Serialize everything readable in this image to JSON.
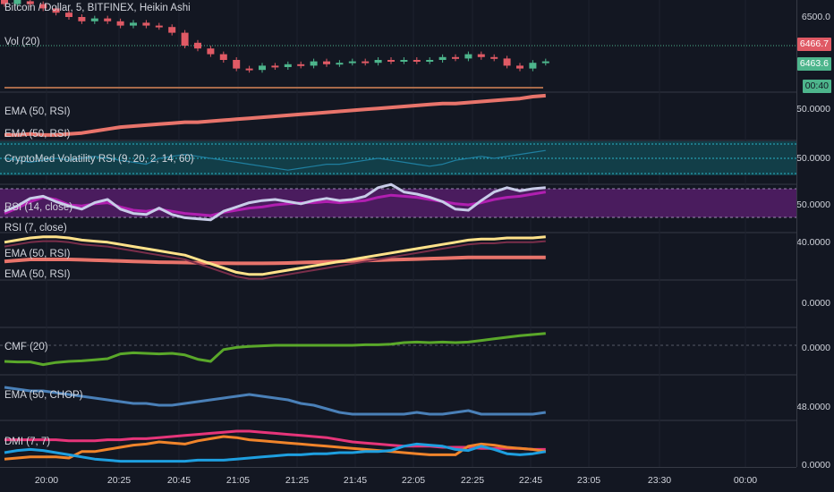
{
  "symbol": {
    "title": "Bitcoin / Dollar, 5, BITFINEX, Heikin Ashi",
    "last_price": "6466.7",
    "secondary_price": "6463.6",
    "countdown": "00:40",
    "price_axis_label": "6500.0"
  },
  "colors": {
    "background": "#131722",
    "up": "#4db58c",
    "down": "#e05a65",
    "grid": "#363a45",
    "ema_salmon": "#e8746b",
    "rsi_line": "#c8cce8",
    "rsi_band": "#4a1c5e",
    "volatility_band": "#123e48",
    "cmf": "#5aa82a",
    "chop": "#4a80b8",
    "dmi_pink": "#e6357a",
    "dmi_orange": "#f0842b",
    "dmi_blue": "#1e9fe0",
    "ema_yellow": "#ffe28a"
  },
  "panes": [
    {
      "id": "price",
      "labels": [
        "Bitcoin / Dollar, 5, BITFINEX, Heikin Ashi",
        "Vol (20)"
      ],
      "axis": "6500.0"
    },
    {
      "id": "ema-rsi",
      "labels": [
        "EMA (50, RSI)",
        "EMA (50, RSI)"
      ],
      "axis": "50.0000"
    },
    {
      "id": "cryptomed",
      "labels": [
        "CryptoMed Volatility RSI (9, 20, 2, 14, 60)"
      ],
      "axis": "50.0000"
    },
    {
      "id": "rsi",
      "labels": [
        "RSI (14, close)",
        "RSI (7, close)"
      ],
      "axis": "50.0000"
    },
    {
      "id": "ema-rsi-2",
      "labels": [
        "EMA (50, RSI)",
        "EMA (50, RSI)"
      ],
      "axis": "40.0000"
    },
    {
      "id": "blank",
      "labels": [],
      "axis": "0.0000"
    },
    {
      "id": "cmf",
      "labels": [
        "CMF (20)"
      ],
      "axis": "0.0000"
    },
    {
      "id": "ema-chop",
      "labels": [
        "EMA (50, CHOP)"
      ],
      "axis": "48.0000"
    },
    {
      "id": "dmi",
      "labels": [
        "DMI (7, 7)"
      ],
      "axis": "0.0000"
    }
  ],
  "time_axis": [
    "20:00",
    "20:25",
    "20:45",
    "21:05",
    "21:25",
    "21:45",
    "22:05",
    "22:25",
    "22:45",
    "23:05",
    "23:30",
    "00:00"
  ],
  "series": {
    "candles": [
      {
        "o": 6512,
        "c": 6509
      },
      {
        "o": 6509,
        "c": 6512
      },
      {
        "o": 6511,
        "c": 6509
      },
      {
        "o": 6509,
        "c": 6506
      },
      {
        "o": 6506,
        "c": 6503
      },
      {
        "o": 6503,
        "c": 6500
      },
      {
        "o": 6500,
        "c": 6497
      },
      {
        "o": 6497,
        "c": 6499
      },
      {
        "o": 6499,
        "c": 6497
      },
      {
        "o": 6497,
        "c": 6494
      },
      {
        "o": 6494,
        "c": 6496
      },
      {
        "o": 6496,
        "c": 6494
      },
      {
        "o": 6494,
        "c": 6493
      },
      {
        "o": 6493,
        "c": 6489
      },
      {
        "o": 6489,
        "c": 6480
      },
      {
        "o": 6482,
        "c": 6478
      },
      {
        "o": 6478,
        "c": 6474
      },
      {
        "o": 6474,
        "c": 6470
      },
      {
        "o": 6470,
        "c": 6464
      },
      {
        "o": 6464,
        "c": 6463
      },
      {
        "o": 6463,
        "c": 6466
      },
      {
        "o": 6466,
        "c": 6465
      },
      {
        "o": 6465,
        "c": 6467
      },
      {
        "o": 6467,
        "c": 6466
      },
      {
        "o": 6466,
        "c": 6469
      },
      {
        "o": 6469,
        "c": 6467
      },
      {
        "o": 6467,
        "c": 6468
      },
      {
        "o": 6468,
        "c": 6469
      },
      {
        "o": 6469,
        "c": 6468
      },
      {
        "o": 6468,
        "c": 6470
      },
      {
        "o": 6470,
        "c": 6469
      },
      {
        "o": 6469,
        "c": 6470
      },
      {
        "o": 6470,
        "c": 6469
      },
      {
        "o": 6469,
        "c": 6470
      },
      {
        "o": 6470,
        "c": 6472
      },
      {
        "o": 6472,
        "c": 6471
      },
      {
        "o": 6471,
        "c": 6474
      },
      {
        "o": 6474,
        "c": 6472
      },
      {
        "o": 6472,
        "c": 6471
      },
      {
        "o": 6471,
        "c": 6466
      },
      {
        "o": 6466,
        "c": 6464
      },
      {
        "o": 6464,
        "c": 6468
      },
      {
        "o": 6468,
        "c": 6469
      }
    ],
    "ema_rsi_1": [
      18,
      18,
      19,
      18,
      18,
      19,
      20,
      22,
      24,
      26,
      27,
      28,
      29,
      30,
      31,
      31,
      32,
      33,
      34,
      35,
      36,
      37,
      38,
      39,
      40,
      41,
      42,
      43,
      44,
      45,
      46,
      47,
      48,
      49,
      50,
      50,
      51,
      52,
      53,
      54,
      55,
      57,
      58
    ],
    "cryptomed": [
      50,
      49,
      48,
      49,
      50,
      49,
      50,
      51,
      50,
      49,
      48,
      47,
      50,
      51,
      52,
      51,
      50,
      49,
      48,
      47,
      46,
      45,
      44,
      45,
      46,
      47,
      47,
      48,
      49,
      50,
      49,
      48,
      47,
      46,
      47,
      49,
      50,
      51,
      50,
      51,
      52,
      53,
      54
    ],
    "rsi14": [
      42,
      47,
      53,
      57,
      55,
      50,
      49,
      51,
      52,
      48,
      45,
      44,
      46,
      44,
      42,
      41,
      40,
      43,
      45,
      47,
      48,
      50,
      51,
      52,
      52,
      53,
      52,
      53,
      54,
      57,
      59,
      58,
      57,
      55,
      53,
      51,
      50,
      52,
      55,
      57,
      58,
      60,
      62
    ],
    "rsi7": [
      44,
      49,
      56,
      58,
      53,
      49,
      46,
      52,
      55,
      46,
      42,
      41,
      47,
      41,
      38,
      37,
      36,
      44,
      48,
      52,
      54,
      55,
      53,
      51,
      54,
      56,
      54,
      55,
      58,
      66,
      69,
      62,
      60,
      57,
      53,
      46,
      45,
      54,
      62,
      66,
      63,
      65,
      66
    ],
    "ema_yellow": [
      38,
      39,
      40,
      40.5,
      40.5,
      40,
      39,
      38.5,
      38,
      37,
      36,
      35,
      34,
      33,
      32,
      30,
      28,
      26,
      24,
      23,
      23,
      24,
      25,
      26,
      27,
      28,
      29,
      30,
      31,
      32,
      33,
      34,
      35,
      36,
      37,
      38,
      39,
      39.5,
      39.5,
      40,
      40,
      40,
      40.5
    ],
    "ema_salmon": [
      31,
      31.5,
      32,
      32,
      32,
      32,
      31.8,
      31.6,
      31.4,
      31.2,
      31,
      30.8,
      30.6,
      30.5,
      30.4,
      30.3,
      30.2,
      30.1,
      30,
      30,
      30,
      30.1,
      30.2,
      30.4,
      30.6,
      30.8,
      31,
      31.2,
      31.4,
      31.6,
      31.8,
      32,
      32.2,
      32.4,
      32.6,
      32.8,
      33,
      33,
      33,
      33,
      33,
      33,
      33
    ],
    "cmf": [
      -0.3,
      -0.31,
      -0.31,
      -0.36,
      -0.32,
      -0.3,
      -0.29,
      -0.27,
      -0.25,
      -0.16,
      -0.14,
      -0.15,
      -0.16,
      -0.15,
      -0.18,
      -0.26,
      -0.3,
      -0.08,
      -0.04,
      -0.02,
      -0.01,
      0.0,
      0.0,
      0.0,
      0.0,
      0.0,
      0.0,
      0.0,
      0.01,
      0.01,
      0.02,
      0.05,
      0.06,
      0.05,
      0.06,
      0.05,
      0.06,
      0.09,
      0.12,
      0.15,
      0.18,
      0.2,
      0.22
    ],
    "chop": [
      62,
      61,
      60,
      60,
      59,
      58,
      57,
      56,
      55,
      54,
      53,
      53,
      52,
      52,
      53,
      54,
      55,
      56,
      57,
      58,
      57,
      56,
      55,
      53,
      52,
      50,
      48,
      47,
      47,
      47,
      47,
      47,
      48,
      47,
      47,
      48,
      49,
      47,
      47,
      47,
      47,
      47,
      48
    ],
    "dmi_pink": [
      22,
      22,
      22,
      22,
      22,
      21,
      21,
      21,
      22,
      22,
      23,
      23,
      24,
      25,
      26,
      27,
      28,
      29,
      30,
      30,
      29,
      28,
      27,
      26,
      25,
      24,
      22,
      20,
      19,
      18,
      17,
      16,
      16,
      16,
      15,
      15,
      15,
      14,
      14,
      14,
      14,
      13,
      13
    ],
    "dmi_orange": [
      4,
      5,
      6,
      6,
      6,
      5,
      11,
      11,
      13,
      15,
      17,
      18,
      20,
      19,
      18,
      21,
      23,
      25,
      24,
      22,
      21,
      20,
      19,
      18,
      17,
      16,
      15,
      14,
      13,
      12,
      11,
      10,
      9,
      8,
      8,
      8,
      16,
      18,
      17,
      15,
      14,
      13,
      11
    ],
    "dmi_blue": [
      10,
      12,
      13,
      12,
      10,
      8,
      6,
      4,
      3,
      2,
      2,
      2,
      2,
      2,
      2,
      3,
      3,
      3,
      4,
      5,
      6,
      7,
      8,
      8,
      9,
      9,
      10,
      10,
      11,
      11,
      12,
      16,
      18,
      17,
      16,
      13,
      12,
      16,
      13,
      9,
      8,
      9,
      11
    ]
  }
}
